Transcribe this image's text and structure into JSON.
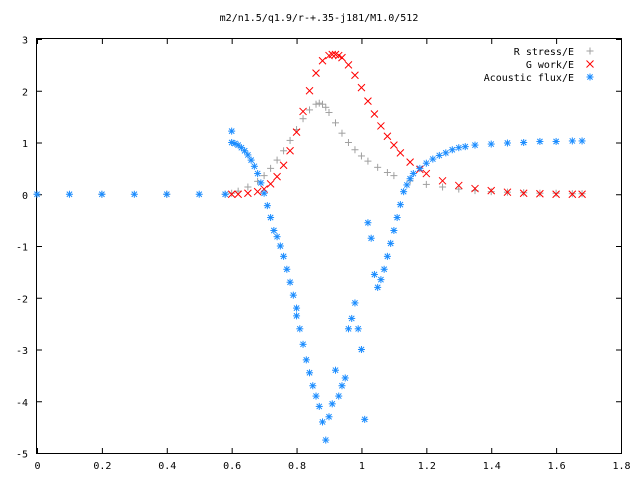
{
  "chart_data": {
    "type": "scatter",
    "title": "m2/n1.5/q1.9/r-+.35-j181/M1.0/512",
    "xlabel": "",
    "ylabel": "",
    "xlim": [
      0,
      1.8
    ],
    "ylim": [
      -5,
      3
    ],
    "xticks": [
      "0",
      "0.2",
      "0.4",
      "0.6",
      "0.8",
      "1",
      "1.2",
      "1.4",
      "1.6",
      "1.8"
    ],
    "yticks": [
      "-5",
      "-4",
      "-3",
      "-2",
      "-1",
      "0",
      "1",
      "2",
      "3"
    ],
    "grid": false,
    "legend_position": "top-right",
    "series": [
      {
        "name": "R stress/E",
        "marker": "plus",
        "color": "#a0a0a0",
        "x": [
          0.0,
          0.2,
          0.4,
          0.58,
          0.6,
          0.62,
          0.65,
          0.68,
          0.7,
          0.72,
          0.74,
          0.76,
          0.78,
          0.8,
          0.82,
          0.84,
          0.86,
          0.87,
          0.88,
          0.89,
          0.9,
          0.92,
          0.94,
          0.96,
          0.98,
          1.0,
          1.02,
          1.05,
          1.08,
          1.1,
          1.15,
          1.2,
          1.25,
          1.3,
          1.35,
          1.4,
          1.45,
          1.5,
          1.55,
          1.6,
          1.65,
          1.68
        ],
        "y": [
          0.0,
          0.0,
          0.0,
          0.0,
          0.02,
          0.06,
          0.14,
          0.25,
          0.36,
          0.5,
          0.66,
          0.84,
          1.04,
          1.25,
          1.46,
          1.63,
          1.74,
          1.76,
          1.74,
          1.68,
          1.58,
          1.38,
          1.18,
          1.0,
          0.86,
          0.74,
          0.64,
          0.52,
          0.42,
          0.36,
          0.26,
          0.19,
          0.14,
          0.1,
          0.07,
          0.05,
          0.04,
          0.03,
          0.02,
          0.02,
          0.01,
          0.01
        ]
      },
      {
        "name": "G work/E",
        "marker": "cross",
        "color": "#ff0000",
        "x": [
          0.6,
          0.62,
          0.65,
          0.68,
          0.7,
          0.72,
          0.74,
          0.76,
          0.78,
          0.8,
          0.82,
          0.84,
          0.86,
          0.88,
          0.9,
          0.91,
          0.92,
          0.93,
          0.94,
          0.96,
          0.98,
          1.0,
          1.02,
          1.04,
          1.06,
          1.08,
          1.1,
          1.12,
          1.15,
          1.18,
          1.2,
          1.25,
          1.3,
          1.35,
          1.4,
          1.45,
          1.5,
          1.55,
          1.6,
          1.65,
          1.68
        ],
        "y": [
          0.0,
          0.0,
          0.02,
          0.05,
          0.1,
          0.2,
          0.34,
          0.56,
          0.84,
          1.2,
          1.6,
          2.0,
          2.34,
          2.58,
          2.68,
          2.7,
          2.7,
          2.68,
          2.64,
          2.5,
          2.3,
          2.06,
          1.8,
          1.55,
          1.32,
          1.12,
          0.95,
          0.8,
          0.62,
          0.48,
          0.4,
          0.26,
          0.17,
          0.11,
          0.07,
          0.04,
          0.02,
          0.01,
          0.0,
          0.0,
          0.0
        ]
      },
      {
        "name": "Acoustic flux/E",
        "marker": "star",
        "color": "#1a8cff",
        "x": [
          0.0,
          0.1,
          0.2,
          0.3,
          0.4,
          0.5,
          0.58,
          0.6,
          0.6,
          0.61,
          0.62,
          0.63,
          0.64,
          0.65,
          0.66,
          0.67,
          0.68,
          0.69,
          0.7,
          0.71,
          0.72,
          0.73,
          0.74,
          0.75,
          0.76,
          0.77,
          0.78,
          0.79,
          0.8,
          0.8,
          0.81,
          0.82,
          0.83,
          0.84,
          0.85,
          0.86,
          0.87,
          0.88,
          0.89,
          0.9,
          0.91,
          0.92,
          0.93,
          0.94,
          0.95,
          0.96,
          0.97,
          0.98,
          0.99,
          1.0,
          1.01,
          1.02,
          1.03,
          1.04,
          1.05,
          1.06,
          1.07,
          1.08,
          1.09,
          1.1,
          1.11,
          1.12,
          1.13,
          1.14,
          1.15,
          1.16,
          1.18,
          1.2,
          1.22,
          1.24,
          1.26,
          1.28,
          1.3,
          1.32,
          1.35,
          1.4,
          1.45,
          1.5,
          1.55,
          1.6,
          1.65,
          1.68
        ],
        "y": [
          0.0,
          0.0,
          0.0,
          0.0,
          0.0,
          0.0,
          0.0,
          1.22,
          1.0,
          0.98,
          0.95,
          0.9,
          0.84,
          0.76,
          0.66,
          0.54,
          0.4,
          0.22,
          0.02,
          -0.22,
          -0.45,
          -0.7,
          -0.82,
          -1.0,
          -1.2,
          -1.45,
          -1.7,
          -1.95,
          -2.2,
          -2.35,
          -2.6,
          -2.9,
          -3.2,
          -3.45,
          -3.7,
          -3.9,
          -4.1,
          -4.4,
          -4.75,
          -4.3,
          -4.05,
          -3.4,
          -3.9,
          -3.7,
          -3.55,
          -2.6,
          -2.4,
          -2.1,
          -2.6,
          -3.0,
          -4.35,
          -0.55,
          -0.85,
          -1.55,
          -1.8,
          -1.65,
          -1.45,
          -1.2,
          -0.95,
          -0.7,
          -0.45,
          -0.2,
          0.05,
          0.18,
          0.3,
          0.4,
          0.5,
          0.6,
          0.68,
          0.75,
          0.8,
          0.86,
          0.9,
          0.92,
          0.95,
          0.97,
          0.99,
          1.0,
          1.02,
          1.02,
          1.03,
          1.03
        ]
      }
    ]
  }
}
